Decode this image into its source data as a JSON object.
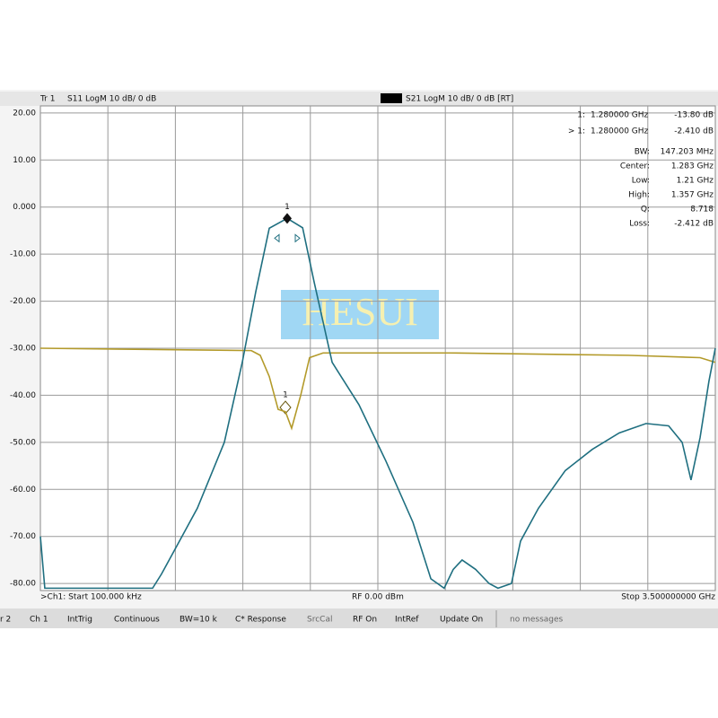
{
  "header": {
    "trace": "Tr 1"
  },
  "chart_data": {
    "type": "line",
    "series": [
      {
        "name": "S11 LogM 10 dB/ 0 dB",
        "color": "#b39a2a",
        "x": [
          0.0001,
          1.094,
          1.14,
          1.187,
          1.233,
          1.271,
          1.303,
          1.35,
          1.396,
          1.466,
          2.118,
          3.048,
          3.421,
          3.5
        ],
        "values": [
          -30,
          -30.5,
          -31.5,
          -36,
          -43,
          -43.5,
          -47,
          -40,
          -32,
          -31,
          -31,
          -31.5,
          -32,
          -33
        ]
      },
      {
        "name": "S21 LogM 10 dB/ 0 dB [RT]",
        "color": "#1f6f80",
        "x": [
          0.0001,
          0.023,
          0.256,
          0.582,
          0.628,
          0.721,
          0.814,
          0.954,
          1.047,
          1.117,
          1.187,
          1.28,
          1.36,
          1.42,
          1.513,
          1.652,
          1.792,
          1.932,
          2.025,
          2.094,
          2.141,
          2.187,
          2.257,
          2.327,
          2.373,
          2.443,
          2.49,
          2.583,
          2.722,
          2.862,
          3.002,
          3.141,
          3.258,
          3.328,
          3.374,
          3.421,
          3.467,
          3.5
        ],
        "values": [
          -70,
          -81,
          -81,
          -81,
          -78,
          -71,
          -64,
          -50,
          -33,
          -18,
          -4.5,
          -2.41,
          -4.4,
          -16,
          -33,
          -42,
          -54,
          -67,
          -79,
          -81,
          -77,
          -75,
          -77,
          -80,
          -81,
          -80,
          -71,
          -64,
          -56,
          -51.5,
          -48,
          -46,
          -46.5,
          -50,
          -58,
          -49,
          -37,
          -30
        ]
      }
    ],
    "xlim": [
      0.0001,
      3.5
    ],
    "ylim": [
      -81.5,
      21.5
    ],
    "yticks": [
      {
        "value": 20,
        "label": "20.00"
      },
      {
        "value": 10,
        "label": "10.00"
      },
      {
        "value": 0,
        "label": "0.000"
      },
      {
        "value": -10,
        "label": "-10.00"
      },
      {
        "value": -20,
        "label": "-20.00"
      },
      {
        "value": -30,
        "label": "-30.00"
      },
      {
        "value": -40,
        "label": "-40.00"
      },
      {
        "value": -50,
        "label": "-50.00"
      },
      {
        "value": -60,
        "label": "-60.00"
      },
      {
        "value": -70,
        "label": "-70.00"
      },
      {
        "value": -80,
        "label": "-80.00"
      }
    ],
    "grid": true,
    "marker": {
      "label": "1",
      "x": 1.28,
      "value": -2.41
    }
  },
  "readout": {
    "rows": [
      [
        "1:",
        "1.280000 GHz",
        "-13.80 dB"
      ],
      [
        "> 1:",
        "1.280000 GHz",
        "-2.410 dB"
      ]
    ],
    "stats": [
      [
        "BW:",
        "147.203 MHz"
      ],
      [
        "Center:",
        "1.283 GHz"
      ],
      [
        "Low:",
        "1.21 GHz"
      ],
      [
        "High:",
        "1.357 GHz"
      ],
      [
        "Q:",
        "8.718"
      ],
      [
        "Loss:",
        "-2.412 dB"
      ]
    ]
  },
  "watermark": "HESUI",
  "footer": {
    "start": ">Ch1: Start 100.000 kHz",
    "power": "RF 0.00 dBm",
    "stop": "Stop 3.500000000 GHz"
  },
  "status": [
    "r 2",
    "Ch 1",
    "IntTrig",
    "Continuous",
    "BW=10 k",
    "C* Response",
    "SrcCal",
    "RF On",
    "IntRef",
    "Update On",
    "no messages"
  ]
}
